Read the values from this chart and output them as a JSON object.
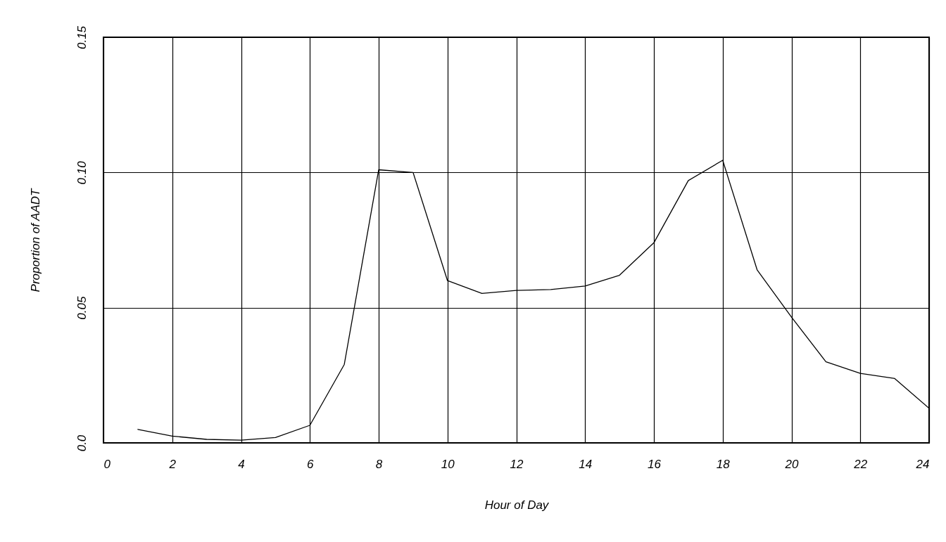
{
  "chart_data": {
    "type": "line",
    "xlabel": "Hour of Day",
    "ylabel": "Proportion of AADT",
    "x": [
      1,
      2,
      3,
      4,
      5,
      6,
      7,
      8,
      9,
      10,
      11,
      12,
      13,
      14,
      15,
      16,
      17,
      18,
      19,
      20,
      21,
      22,
      23,
      24
    ],
    "series": [
      {
        "color": "#000000",
        "values": [
          0.005,
          0.0025,
          0.0013,
          0.001,
          0.002,
          0.0065,
          0.029,
          0.101,
          0.1,
          0.06,
          0.0553,
          0.0564,
          0.0567,
          0.058,
          0.062,
          0.074,
          0.097,
          0.1045,
          0.064,
          0.0465,
          0.03,
          0.0257,
          0.0238,
          0.0128
        ]
      }
    ],
    "xlim": [
      0,
      24
    ],
    "xticks": [
      0,
      2,
      4,
      6,
      8,
      10,
      12,
      14,
      16,
      18,
      20,
      22,
      24
    ],
    "ylim": [
      0,
      0.15
    ],
    "yticks": [
      {
        "value": 0,
        "label": "0.0"
      },
      0.05,
      {
        "value": 0.1,
        "label": "0.10"
      },
      0.15
    ],
    "grid": true,
    "marker": "none",
    "line_style": "solid"
  }
}
